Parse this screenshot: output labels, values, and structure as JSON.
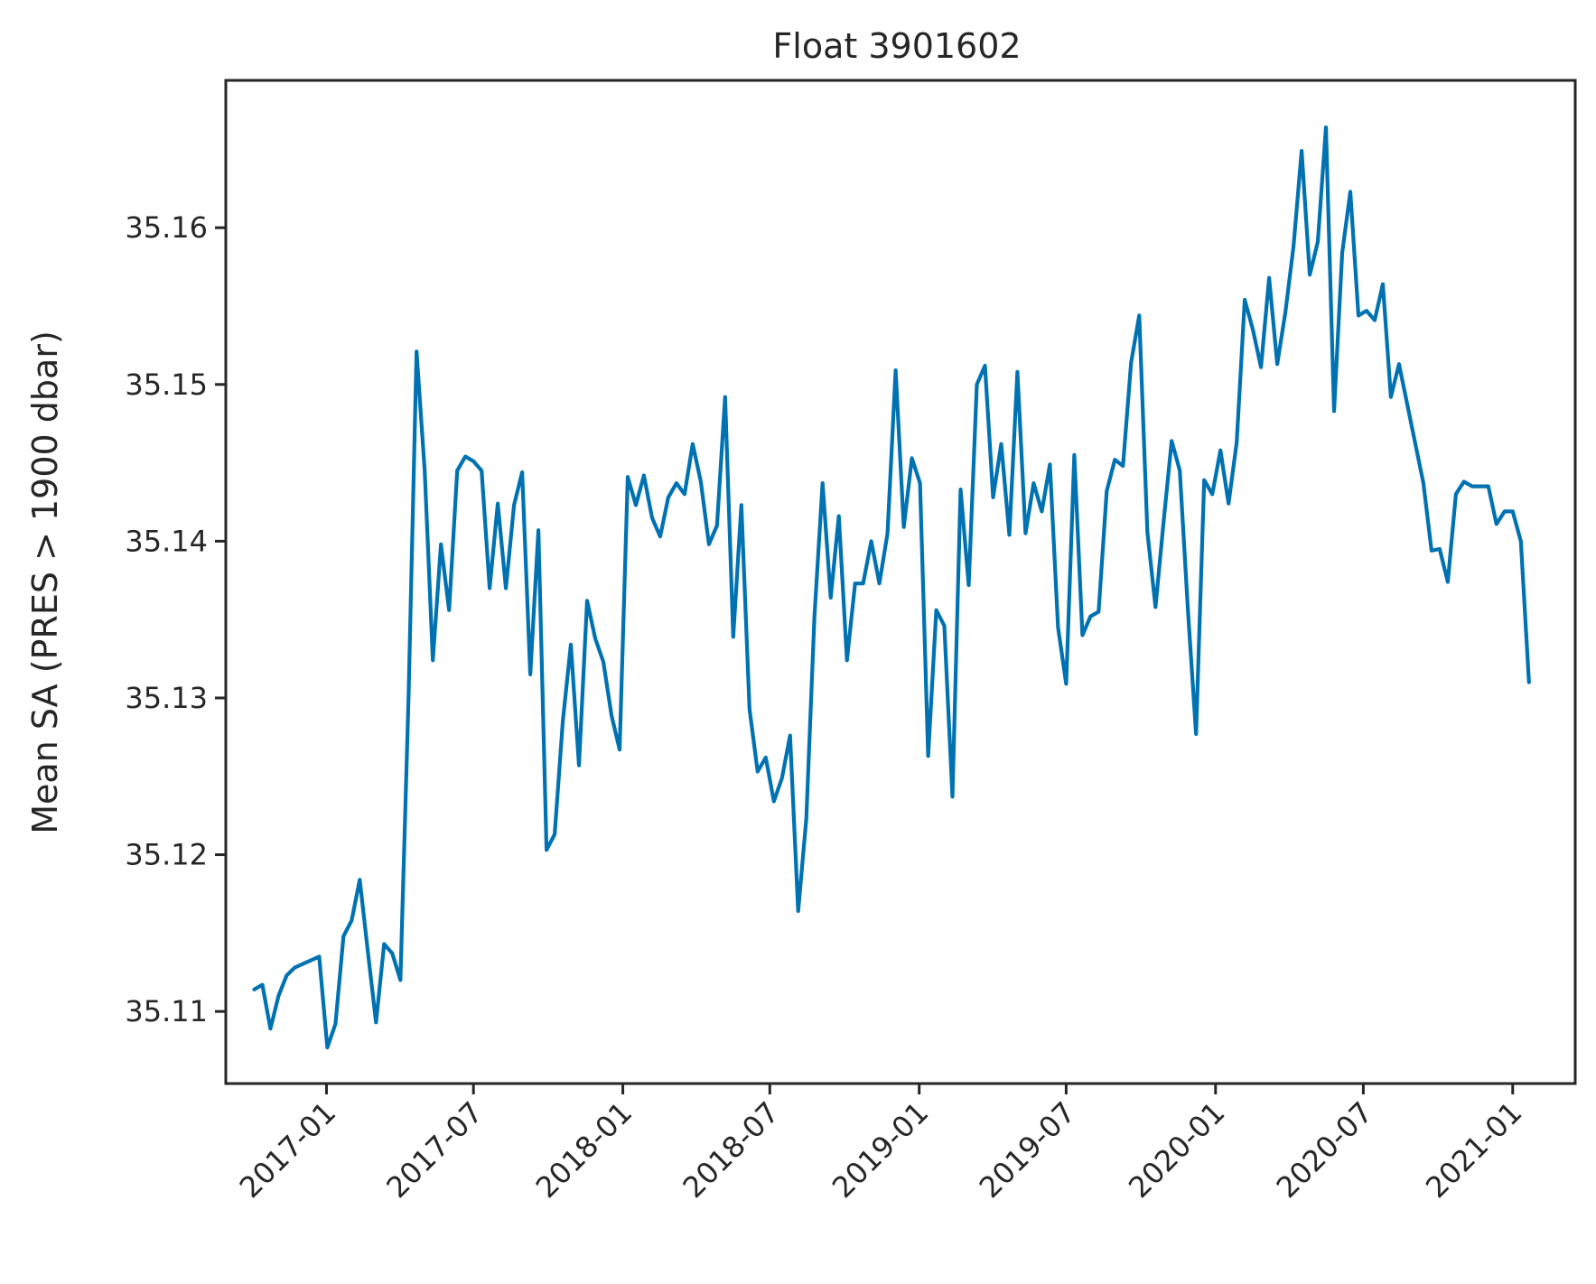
{
  "chart_data": {
    "type": "line",
    "title": "Float 3901602",
    "xlabel": "",
    "ylabel": "Mean SA (PRES > 1900 dbar)",
    "grid": false,
    "legend": "none",
    "x_ticks": [
      "2017-01",
      "2017-07",
      "2018-01",
      "2018-07",
      "2019-01",
      "2019-07",
      "2020-01",
      "2020-07",
      "2021-01"
    ],
    "y_ticks": [
      "35.11",
      "35.12",
      "35.13",
      "35.14",
      "35.15",
      "35.16"
    ],
    "y_tick_values": [
      35.11,
      35.12,
      35.13,
      35.14,
      35.15,
      35.16
    ],
    "xlim": [
      "2016-08-30",
      "2021-03-19"
    ],
    "ylim": [
      35.1054,
      35.1694
    ],
    "line_color": "#0072b2",
    "series": [
      {
        "x": [
          "2016-10-04",
          "2016-10-14",
          "2016-10-24",
          "2016-11-03",
          "2016-11-13",
          "2016-11-23",
          "2016-12-23",
          "2017-01-02",
          "2017-01-12",
          "2017-01-22",
          "2017-02-01",
          "2017-02-11",
          "2017-02-21",
          "2017-03-03",
          "2017-03-13",
          "2017-03-23",
          "2017-04-02",
          "2017-04-12",
          "2017-04-22",
          "2017-05-02",
          "2017-05-12",
          "2017-05-22",
          "2017-06-01",
          "2017-06-11",
          "2017-06-21",
          "2017-07-01",
          "2017-07-11",
          "2017-07-21",
          "2017-07-31",
          "2017-08-10",
          "2017-08-20",
          "2017-08-30",
          "2017-09-09",
          "2017-09-19",
          "2017-09-29",
          "2017-10-09",
          "2017-10-19",
          "2017-10-29",
          "2017-11-08",
          "2017-11-18",
          "2017-11-28",
          "2017-12-08",
          "2017-12-18",
          "2017-12-28",
          "2018-01-07",
          "2018-01-17",
          "2018-01-27",
          "2018-02-06",
          "2018-02-16",
          "2018-02-26",
          "2018-03-08",
          "2018-03-18",
          "2018-03-28",
          "2018-04-07",
          "2018-04-17",
          "2018-04-27",
          "2018-05-07",
          "2018-05-17",
          "2018-05-27",
          "2018-06-06",
          "2018-06-16",
          "2018-06-26",
          "2018-07-06",
          "2018-07-16",
          "2018-07-26",
          "2018-08-05",
          "2018-08-15",
          "2018-08-25",
          "2018-09-04",
          "2018-09-14",
          "2018-09-24",
          "2018-10-04",
          "2018-10-14",
          "2018-10-24",
          "2018-11-03",
          "2018-11-13",
          "2018-11-23",
          "2018-12-03",
          "2018-12-13",
          "2018-12-23",
          "2019-01-02",
          "2019-01-12",
          "2019-01-22",
          "2019-02-01",
          "2019-02-11",
          "2019-02-21",
          "2019-03-03",
          "2019-03-13",
          "2019-03-23",
          "2019-04-02",
          "2019-04-12",
          "2019-04-22",
          "2019-05-02",
          "2019-05-12",
          "2019-05-22",
          "2019-06-01",
          "2019-06-11",
          "2019-06-21",
          "2019-07-01",
          "2019-07-11",
          "2019-07-21",
          "2019-07-31",
          "2019-08-10",
          "2019-08-20",
          "2019-08-30",
          "2019-09-09",
          "2019-09-19",
          "2019-09-29",
          "2019-10-09",
          "2019-10-19",
          "2019-10-29",
          "2019-11-08",
          "2019-11-18",
          "2019-11-28",
          "2019-12-08",
          "2019-12-18",
          "2019-12-28",
          "2020-01-07",
          "2020-01-17",
          "2020-01-27",
          "2020-02-06",
          "2020-02-16",
          "2020-02-26",
          "2020-03-07",
          "2020-03-17",
          "2020-03-27",
          "2020-04-06",
          "2020-04-16",
          "2020-04-26",
          "2020-05-06",
          "2020-05-16",
          "2020-05-26",
          "2020-06-05",
          "2020-06-15",
          "2020-06-25",
          "2020-07-05",
          "2020-07-15",
          "2020-07-25",
          "2020-08-04",
          "2020-08-14",
          "2020-09-13",
          "2020-09-23",
          "2020-10-03",
          "2020-10-13",
          "2020-10-23",
          "2020-11-02",
          "2020-11-12",
          "2020-12-02",
          "2020-12-12",
          "2020-12-22",
          "2021-01-01",
          "2021-01-11",
          "2021-01-21"
        ],
        "y": [
          35.1114,
          35.1117,
          35.1089,
          35.111,
          35.1123,
          35.1128,
          35.1135,
          35.1077,
          35.1092,
          35.1148,
          35.1158,
          35.1184,
          35.1138,
          35.1093,
          35.1143,
          35.1137,
          35.112,
          35.13,
          35.1521,
          35.1445,
          35.1324,
          35.1398,
          35.1356,
          35.1445,
          35.1454,
          35.1451,
          35.1445,
          35.137,
          35.1424,
          35.137,
          35.1423,
          35.1444,
          35.1315,
          35.1407,
          35.1203,
          35.1213,
          35.1285,
          35.1334,
          35.1257,
          35.1362,
          35.1338,
          35.1323,
          35.1289,
          35.1267,
          35.1441,
          35.1423,
          35.1442,
          35.1415,
          35.1403,
          35.1428,
          35.1437,
          35.143,
          35.1462,
          35.1438,
          35.1398,
          35.141,
          35.1492,
          35.1339,
          35.1423,
          35.1293,
          35.1253,
          35.1262,
          35.1234,
          35.1249,
          35.1276,
          35.1164,
          35.1223,
          35.1352,
          35.1437,
          35.1364,
          35.1416,
          35.1324,
          35.1373,
          35.1373,
          35.14,
          35.1373,
          35.1405,
          35.1509,
          35.1409,
          35.1453,
          35.1437,
          35.1263,
          35.1356,
          35.1346,
          35.1237,
          35.1433,
          35.1372,
          35.15,
          35.1512,
          35.1428,
          35.1462,
          35.1404,
          35.1508,
          35.1405,
          35.1437,
          35.1419,
          35.1449,
          35.1345,
          35.1309,
          35.1455,
          35.134,
          35.1352,
          35.1355,
          35.1432,
          35.1452,
          35.1448,
          35.1514,
          35.1544,
          35.1406,
          35.1358,
          35.1412,
          35.1464,
          35.1445,
          35.1356,
          35.1277,
          35.1439,
          35.143,
          35.1458,
          35.1424,
          35.1463,
          35.1554,
          35.1535,
          35.1511,
          35.1568,
          35.1513,
          35.1546,
          35.1588,
          35.1649,
          35.157,
          35.1591,
          35.1664,
          35.1483,
          35.1584,
          35.1623,
          35.1544,
          35.1547,
          35.1541,
          35.1564,
          35.1492,
          35.1513,
          35.1437,
          35.1394,
          35.1395,
          35.1374,
          35.143,
          35.1438,
          35.1435,
          35.1435,
          35.1411,
          35.1419,
          35.1419,
          35.14,
          35.131
        ]
      }
    ]
  }
}
